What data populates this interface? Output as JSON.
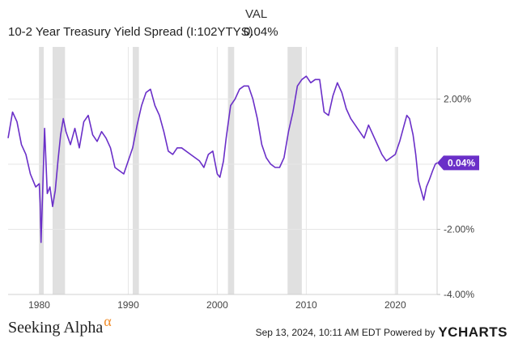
{
  "header": {
    "col_label": "VAL"
  },
  "legend": {
    "name": "10-2 Year Treasury Yield Spread (I:102YTYS)",
    "value": "0.04%"
  },
  "footer": {
    "brand": "Seeking Alpha",
    "brand_symbol": "α",
    "timestamp": "Sep 13, 2024, 10:11 AM EDT Powered by",
    "powered_brand": "YCHARTS"
  },
  "colors": {
    "series": "#6a2fc8",
    "recession": "#e0e0e0",
    "grid": "#e6e6e6"
  },
  "chart_data": {
    "type": "line",
    "series": [
      {
        "name": "10-2 Year Treasury Yield Spread (I:102YTYS)",
        "x": [
          1976.5,
          1977.0,
          1977.5,
          1978.0,
          1978.5,
          1979.0,
          1979.3,
          1979.6,
          1980.0,
          1980.1,
          1980.2,
          1980.4,
          1980.6,
          1980.9,
          1981.2,
          1981.5,
          1981.8,
          1982.1,
          1982.4,
          1982.7,
          1983.0,
          1983.5,
          1984.0,
          1984.5,
          1985.0,
          1985.5,
          1986.0,
          1986.5,
          1987.0,
          1987.5,
          1988.0,
          1988.5,
          1989.0,
          1989.5,
          1990.0,
          1990.5,
          1991.0,
          1991.5,
          1992.0,
          1992.5,
          1993.0,
          1993.5,
          1994.0,
          1994.5,
          1995.0,
          1995.5,
          1996.0,
          1997.0,
          1998.0,
          1998.5,
          1999.0,
          1999.5,
          2000.0,
          2000.3,
          2000.7,
          2001.0,
          2001.5,
          2002.0,
          2002.5,
          2003.0,
          2003.5,
          2004.0,
          2004.5,
          2005.0,
          2005.5,
          2006.0,
          2006.5,
          2007.0,
          2007.5,
          2008.0,
          2008.5,
          2009.0,
          2009.5,
          2010.0,
          2010.5,
          2011.0,
          2011.5,
          2012.0,
          2012.5,
          2013.0,
          2013.5,
          2014.0,
          2014.5,
          2015.0,
          2015.5,
          2016.0,
          2016.5,
          2017.0,
          2017.5,
          2018.0,
          2018.5,
          2019.0,
          2019.5,
          2020.0,
          2020.5,
          2021.0,
          2021.3,
          2021.6,
          2022.0,
          2022.3,
          2022.6,
          2022.9,
          2023.2,
          2023.5,
          2023.8,
          2024.2,
          2024.5,
          2024.7
        ],
        "values": [
          0.8,
          1.6,
          1.3,
          0.6,
          0.3,
          -0.3,
          -0.5,
          -0.7,
          -0.6,
          -1.2,
          -2.4,
          -0.7,
          1.1,
          -0.9,
          -0.7,
          -1.3,
          -0.8,
          0.1,
          0.9,
          1.4,
          1.0,
          0.6,
          1.1,
          0.5,
          1.3,
          1.5,
          0.9,
          0.7,
          1.0,
          0.8,
          0.5,
          -0.1,
          -0.2,
          -0.3,
          0.1,
          0.5,
          1.2,
          1.8,
          2.2,
          2.3,
          1.8,
          1.5,
          1.0,
          0.4,
          0.3,
          0.5,
          0.5,
          0.3,
          0.1,
          -0.1,
          0.3,
          0.4,
          -0.3,
          -0.4,
          0.1,
          0.8,
          1.8,
          2.0,
          2.3,
          2.4,
          2.4,
          2.0,
          1.4,
          0.6,
          0.2,
          0.0,
          -0.1,
          -0.1,
          0.2,
          1.0,
          1.6,
          2.4,
          2.6,
          2.7,
          2.5,
          2.6,
          2.6,
          1.6,
          1.5,
          2.1,
          2.5,
          2.2,
          1.7,
          1.4,
          1.2,
          1.0,
          0.8,
          1.2,
          0.9,
          0.6,
          0.3,
          0.1,
          0.2,
          0.3,
          0.7,
          1.2,
          1.5,
          1.4,
          0.9,
          0.3,
          -0.5,
          -0.8,
          -1.1,
          -0.7,
          -0.5,
          -0.2,
          0.0,
          0.04
        ]
      }
    ],
    "recessions": [
      [
        1980.0,
        1980.5
      ],
      [
        1981.5,
        1982.9
      ],
      [
        1990.5,
        1991.2
      ],
      [
        2001.2,
        2001.9
      ],
      [
        2007.9,
        2009.5
      ],
      [
        2020.1,
        2020.3
      ]
    ],
    "xlim": [
      1976.5,
      2024.7
    ],
    "ylim": [
      -4.0,
      3.6
    ],
    "x_ticks": [
      1980,
      1990,
      2000,
      2010,
      2020
    ],
    "y_ticks": [
      {
        "value": 2.0,
        "label": "2.00%"
      },
      {
        "value": -2.0,
        "label": "-2.00%"
      },
      {
        "value": -4.0,
        "label": "-4.00%"
      }
    ],
    "last_value_label": "0.04%",
    "grid": true
  }
}
